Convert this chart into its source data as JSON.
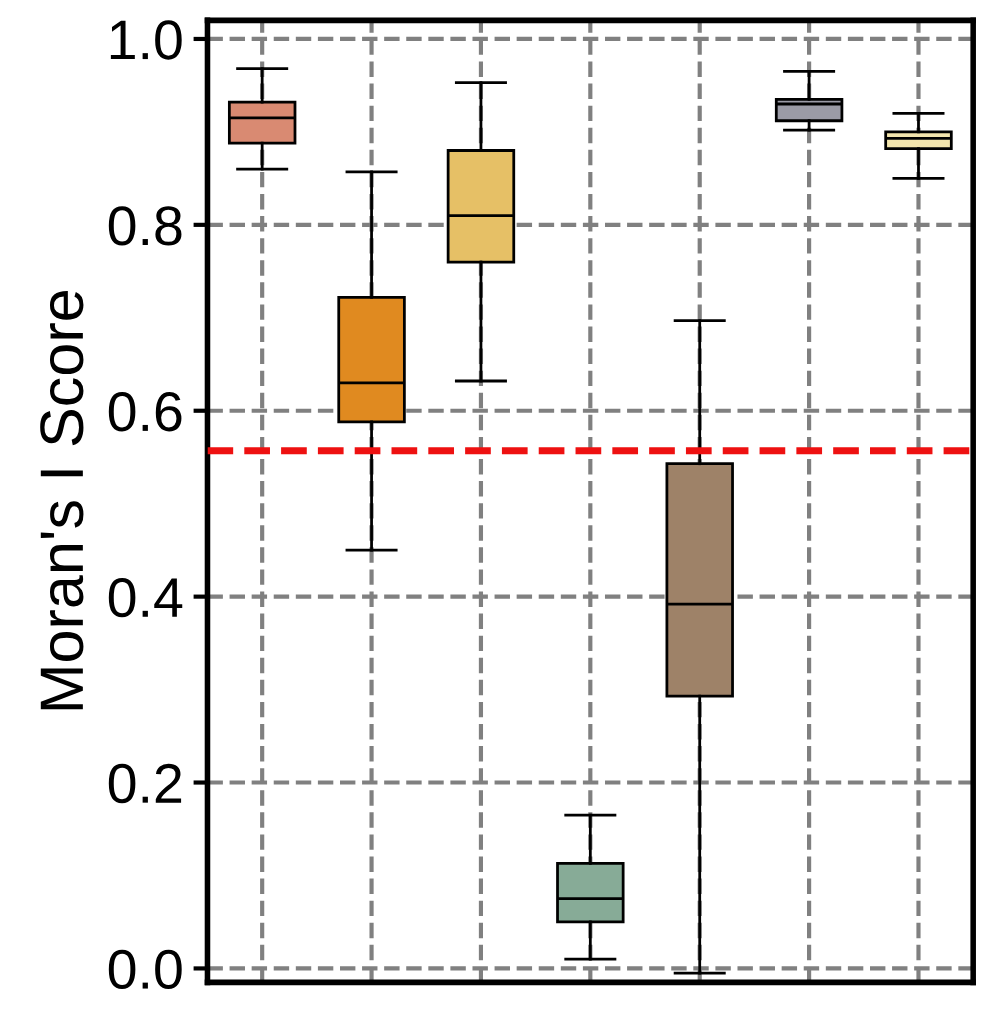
{
  "chart_data": {
    "type": "box",
    "ylabel": "Moran's I Score",
    "categories": [
      null,
      null,
      null,
      null,
      null,
      null,
      null
    ],
    "boxes": [
      {
        "low": 0.86,
        "q1": 0.888,
        "median": 0.915,
        "q3": 0.932,
        "high": 0.968
      },
      {
        "low": 0.45,
        "q1": 0.588,
        "median": 0.63,
        "q3": 0.722,
        "high": 0.857
      },
      {
        "low": 0.632,
        "q1": 0.76,
        "median": 0.81,
        "q3": 0.88,
        "high": 0.953
      },
      {
        "low": 0.01,
        "q1": 0.05,
        "median": 0.075,
        "q3": 0.113,
        "high": 0.165
      },
      {
        "low": -0.005,
        "q1": 0.293,
        "median": 0.392,
        "q3": 0.543,
        "high": 0.697
      },
      {
        "low": 0.902,
        "q1": 0.912,
        "median": 0.93,
        "q3": 0.935,
        "high": 0.965
      },
      {
        "low": 0.85,
        "q1": 0.882,
        "median": 0.893,
        "q3": 0.9,
        "high": 0.92
      }
    ],
    "colors": [
      "#d98a72",
      "#e08a20",
      "#e6c066",
      "#87ab97",
      "#9e8268",
      "#9b9ba6",
      "#f3e5ad"
    ],
    "ylim": [
      -0.015,
      1.02
    ],
    "yticks": [
      {
        "value": 0,
        "label": "0.0"
      },
      0.2,
      0.4,
      0.6,
      0.8,
      {
        "value": 1,
        "label": "1.0"
      }
    ],
    "ref_lines": [
      {
        "axis": "y",
        "value": 0.557,
        "color": "#ee1111",
        "line_style": "dashed"
      }
    ],
    "grid": true,
    "line_style": "dashed"
  }
}
